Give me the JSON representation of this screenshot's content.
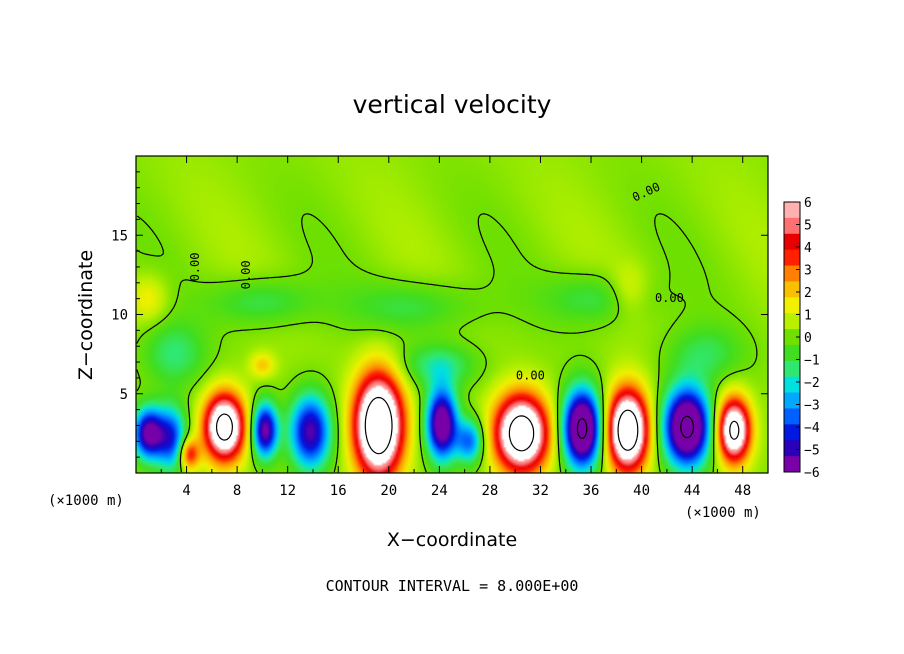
{
  "chart_data": {
    "type": "heatmap",
    "title": "vertical velocity",
    "xlabel": "X−coordinate",
    "ylabel": "Z−coordinate",
    "x_unit_label": "(×1000 m)",
    "x_unit_label_right": "(×1000 m)",
    "xlim": [
      0,
      50
    ],
    "ylim": [
      0,
      20
    ],
    "xticks": [
      "4",
      "8",
      "12",
      "16",
      "20",
      "24",
      "28",
      "32",
      "36",
      "40",
      "44",
      "48"
    ],
    "yticks": [
      "5",
      "10",
      "15"
    ],
    "colorbar": {
      "labels": [
        "6",
        "5",
        "4",
        "3",
        "2",
        "1",
        "0",
        "−1",
        "−2",
        "−3",
        "−4",
        "−5",
        "−6"
      ],
      "range": [
        -6,
        6
      ],
      "colors": [
        "#7a00a8",
        "#2a00b8",
        "#0018e0",
        "#0060ff",
        "#00a8ff",
        "#00e0e0",
        "#30e870",
        "#40dd20",
        "#70e000",
        "#b8f000",
        "#f0f000",
        "#f8c000",
        "#ff8000",
        "#ff2000",
        "#e80000",
        "#ff7070",
        "#ffb0b0"
      ]
    },
    "contour_labels": [
      "0.00",
      "0.00",
      "0.00",
      "0.00",
      "0.00"
    ],
    "contour_interval_text": "CONTOUR INTERVAL = 8.000E+00",
    "background_value": 0.3,
    "cells": [
      {
        "x": 1.0,
        "z": 2.5,
        "w": -6.5,
        "sx": 1.2,
        "sz": 1.6
      },
      {
        "x": 2.8,
        "z": 2.2,
        "w": -4.5,
        "sx": 1.2,
        "sz": 2.0
      },
      {
        "x": 7.0,
        "z": 2.9,
        "w": 9.0,
        "sx": 1.6,
        "sz": 2.1
      },
      {
        "x": 4.2,
        "z": 1.2,
        "w": 4.0,
        "sx": 0.8,
        "sz": 1.0
      },
      {
        "x": 10.2,
        "z": 2.7,
        "w": -6.5,
        "sx": 1.0,
        "sz": 1.7
      },
      {
        "x": 13.8,
        "z": 2.6,
        "w": -6.0,
        "sx": 1.6,
        "sz": 2.3
      },
      {
        "x": 19.2,
        "z": 3.0,
        "w": 10.5,
        "sx": 1.9,
        "sz": 3.2
      },
      {
        "x": 24.2,
        "z": 3.1,
        "w": -7.5,
        "sx": 1.2,
        "sz": 2.2
      },
      {
        "x": 26.4,
        "z": 2.0,
        "w": -4.0,
        "sx": 1.1,
        "sz": 1.4
      },
      {
        "x": 30.5,
        "z": 2.5,
        "w": 9.5,
        "sx": 2.1,
        "sz": 2.4
      },
      {
        "x": 35.3,
        "z": 2.8,
        "w": -9.0,
        "sx": 1.5,
        "sz": 2.4
      },
      {
        "x": 38.9,
        "z": 2.7,
        "w": 10.0,
        "sx": 1.6,
        "sz": 2.5
      },
      {
        "x": 43.6,
        "z": 2.9,
        "w": -9.0,
        "sx": 1.8,
        "sz": 2.4
      },
      {
        "x": 47.3,
        "z": 2.7,
        "w": 8.5,
        "sx": 1.3,
        "sz": 2.0
      },
      {
        "x": 10.0,
        "z": 10.8,
        "w": -1.6,
        "sx": 4.0,
        "sz": 1.5
      },
      {
        "x": 22.0,
        "z": 10.5,
        "w": -1.4,
        "sx": 5.0,
        "sz": 1.6
      },
      {
        "x": 36.5,
        "z": 11.0,
        "w": -1.5,
        "sx": 4.0,
        "sz": 1.6
      },
      {
        "x": 3.0,
        "z": 7.5,
        "w": -1.8,
        "sx": 2.5,
        "sz": 2.0
      },
      {
        "x": 24.0,
        "z": 6.8,
        "w": -2.0,
        "sx": 3.0,
        "sz": 1.4
      },
      {
        "x": 45.0,
        "z": 7.5,
        "w": -1.5,
        "sx": 3.0,
        "sz": 1.8
      },
      {
        "x": 1.0,
        "z": 11.0,
        "w": 1.4,
        "sx": 1.5,
        "sz": 1.5
      },
      {
        "x": 39.0,
        "z": 11.5,
        "w": 1.2,
        "sx": 1.5,
        "sz": 1.6
      },
      {
        "x": 10.0,
        "z": 6.8,
        "w": 1.8,
        "sx": 1.0,
        "sz": 0.8
      }
    ]
  }
}
